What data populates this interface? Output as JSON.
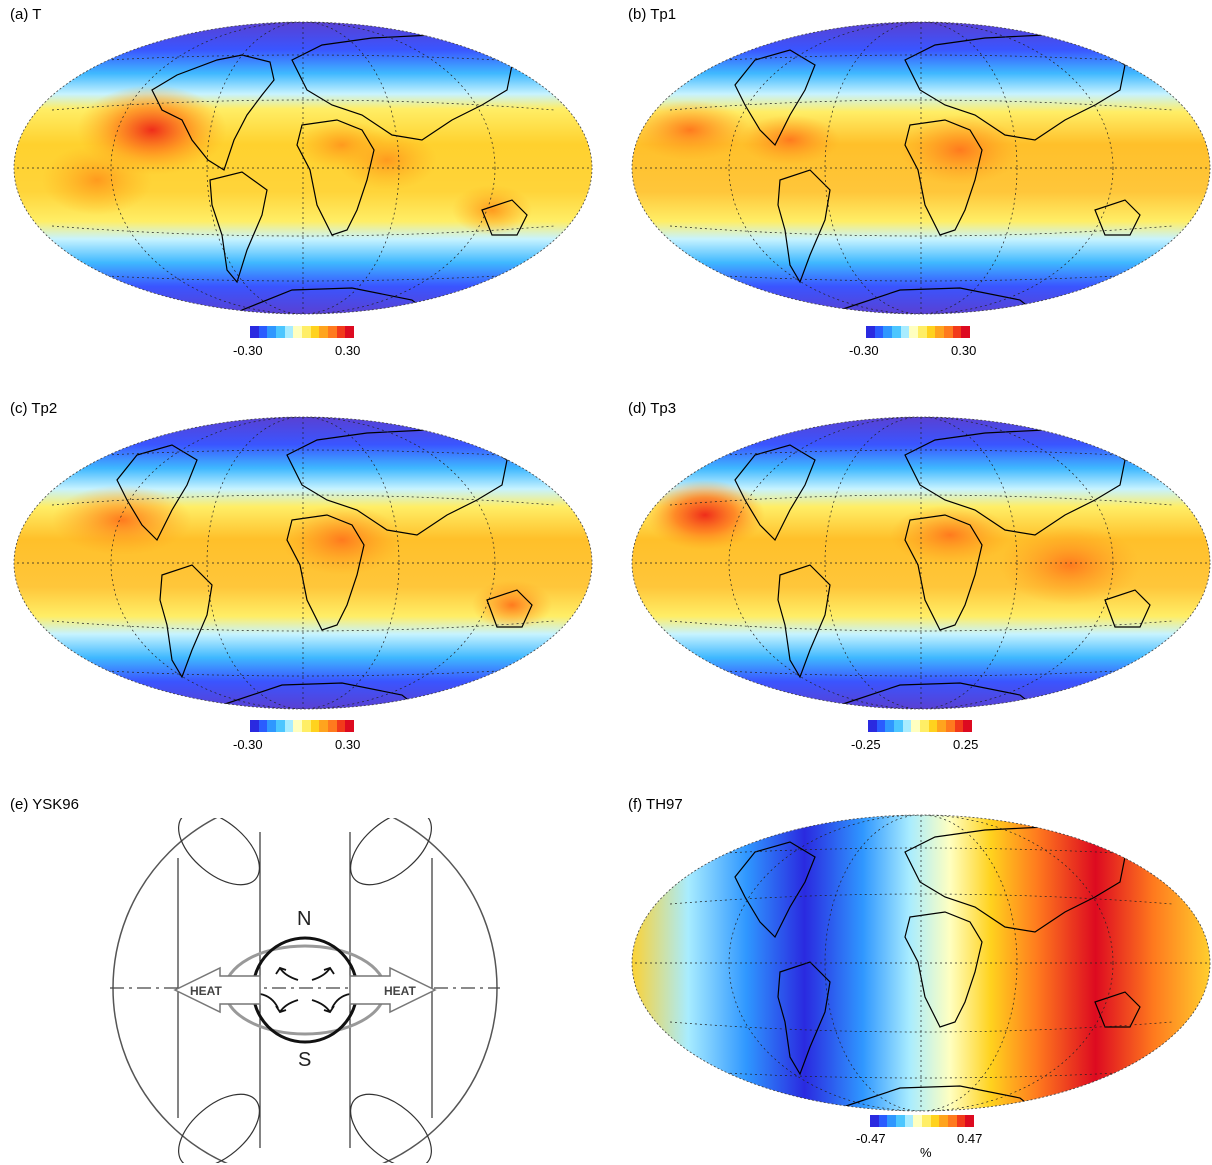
{
  "panels": [
    {
      "id": "a",
      "label": "(a) T",
      "colorbar": {
        "min_label": "-0.30",
        "max_label": "0.30"
      }
    },
    {
      "id": "b",
      "label": "(b) Tp1",
      "colorbar": {
        "min_label": "-0.30",
        "max_label": "0.30"
      }
    },
    {
      "id": "c",
      "label": "(c) Tp2",
      "colorbar": {
        "min_label": "-0.30",
        "max_label": "0.30"
      }
    },
    {
      "id": "d",
      "label": "(d) Tp3",
      "colorbar": {
        "min_label": "-0.25",
        "max_label": "0.25"
      }
    },
    {
      "id": "e",
      "label": "(e) YSK96",
      "diagram": {
        "north": "N",
        "south": "S",
        "heat_left": "HEAT",
        "heat_right": "HEAT"
      }
    },
    {
      "id": "f",
      "label": "(f) TH97",
      "colorbar": {
        "min_label": "-0.47",
        "max_label": "0.47",
        "unit": "%"
      }
    }
  ],
  "colors": {
    "scale": [
      "#2a2ae0",
      "#2a5cff",
      "#2f97ff",
      "#4cc6ff",
      "#a8ecff",
      "#ffffc0",
      "#ffee66",
      "#ffd21e",
      "#ffa41e",
      "#ff7a1e",
      "#f23a1a",
      "#dd0a20"
    ],
    "map_low": "#5b3fd0",
    "map_mid": "#ffd12e",
    "map_high": "#ef2d1a",
    "coast": "#000000"
  }
}
